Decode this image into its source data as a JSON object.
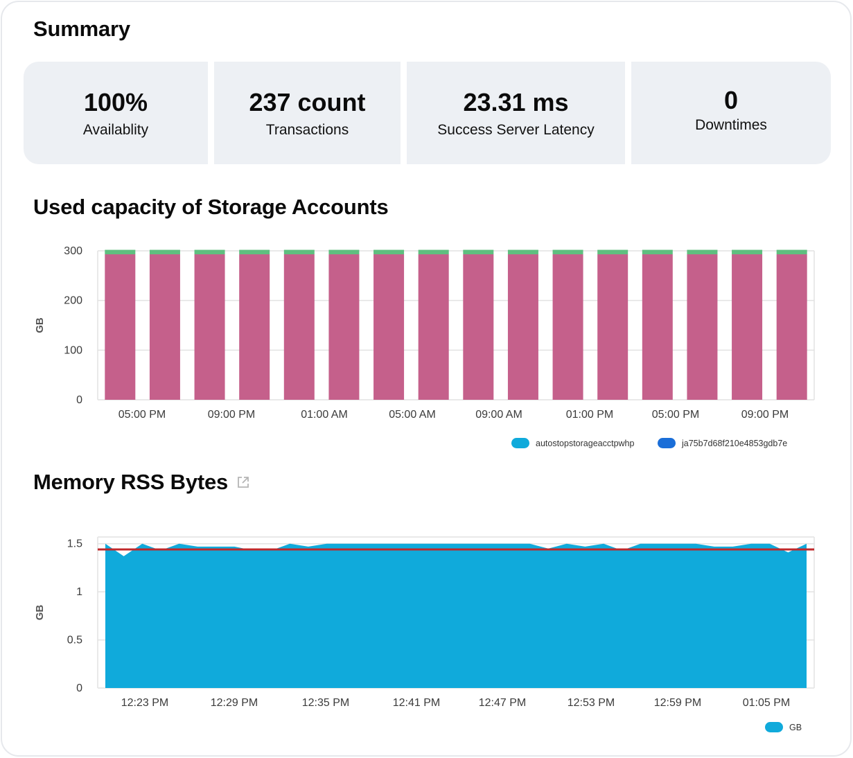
{
  "summary": {
    "title": "Summary",
    "tiles": [
      {
        "value": "100%",
        "label": "Availablity"
      },
      {
        "value": "237 count",
        "label": "Transactions"
      },
      {
        "value": "23.31 ms",
        "label": "Success Server Latency"
      },
      {
        "value": "0",
        "label": "Downtimes"
      }
    ]
  },
  "storage": {
    "title": "Used capacity of Storage Accounts"
  },
  "memory": {
    "title": "Memory RSS Bytes",
    "link_icon": "external-link-icon"
  },
  "colors": {
    "tile_bg": "#edf0f4",
    "bar_main": "#c5608b",
    "bar_top": "#5fbf7f",
    "legend_1": "#0faadb",
    "legend_2": "#1a6ed8",
    "area": "#10aadb",
    "threshold": "#c0282b",
    "grid": "#e2e2e2"
  },
  "chart_data": [
    {
      "type": "bar",
      "stacked": true,
      "ylabel": "GB",
      "ylim": [
        0,
        300
      ],
      "yticks": [
        0,
        100,
        200,
        300
      ],
      "xtick_labels": [
        "05:00 PM",
        "09:00 PM",
        "01:00 AM",
        "05:00 AM",
        "09:00 AM",
        "01:00 PM",
        "05:00 PM",
        "09:00 PM"
      ],
      "bar_count": 16,
      "series": [
        {
          "name": "autostopstorageacctpwhp",
          "values": [
            293,
            293,
            293,
            293,
            293,
            293,
            293,
            293,
            293,
            293,
            293,
            293,
            293,
            293,
            293,
            293
          ]
        },
        {
          "name": "ja75b7d68f210e4853gdb7e",
          "values": [
            9,
            9,
            9,
            9,
            9,
            9,
            9,
            9,
            9,
            9,
            9,
            9,
            9,
            9,
            9,
            9
          ]
        }
      ],
      "legend": [
        "autostopstorageacctpwhp",
        "ja75b7d68f210e4853gdb7e"
      ],
      "legend_position": "bottom-right",
      "grid": true
    },
    {
      "type": "area",
      "ylabel": "GB",
      "ylim": [
        0,
        1.5
      ],
      "yticks": [
        0,
        0.5,
        1,
        1.5
      ],
      "yticklabels": [
        "0",
        "0.5",
        "1",
        "1.5"
      ],
      "xtick_labels": [
        "12:23 PM",
        "12:29 PM",
        "12:35 PM",
        "12:41 PM",
        "12:47 PM",
        "12:53 PM",
        "12:59 PM",
        "01:05 PM"
      ],
      "series": [
        {
          "name": "GB",
          "values": [
            1.5,
            1.37,
            1.5,
            1.43,
            1.5,
            1.47,
            1.47,
            1.47,
            1.43,
            1.43,
            1.5,
            1.47,
            1.5,
            1.5,
            1.5,
            1.5,
            1.5,
            1.5,
            1.5,
            1.5,
            1.5,
            1.5,
            1.5,
            1.5,
            1.45,
            1.5,
            1.47,
            1.5,
            1.43,
            1.5,
            1.5,
            1.5,
            1.5,
            1.47,
            1.47,
            1.5,
            1.5,
            1.41,
            1.5
          ]
        }
      ],
      "threshold": 1.44,
      "legend": [
        "GB"
      ],
      "legend_position": "bottom-right",
      "grid": true
    }
  ]
}
